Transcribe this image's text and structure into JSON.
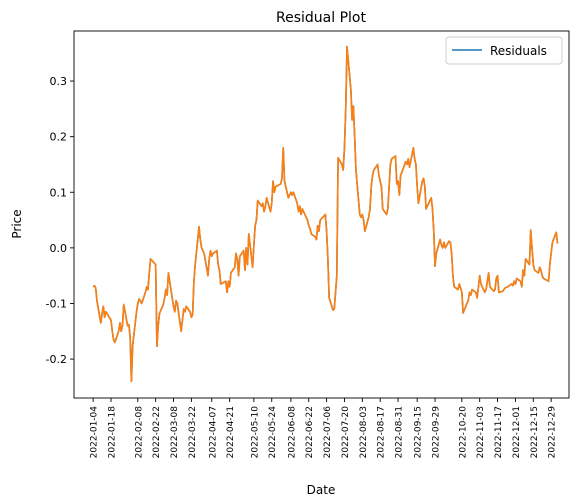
{
  "chart_data": {
    "type": "line",
    "title": "Residual Plot",
    "xlabel": "Date",
    "ylabel": "Price",
    "grid": false,
    "legend_position": "upper right",
    "xlim": [
      "2021-12-20",
      "2023-01-12"
    ],
    "ylim": [
      -0.27,
      0.39
    ],
    "yticks": [
      "-0.2",
      "-0.1",
      "0.0",
      "0.1",
      "0.2",
      "0.3"
    ],
    "xticks": [
      "2022-01-04",
      "2022-01-18",
      "2022-02-08",
      "2022-02-22",
      "2022-03-08",
      "2022-03-22",
      "2022-04-07",
      "2022-04-21",
      "2022-05-10",
      "2022-05-24",
      "2022-06-08",
      "2022-06-22",
      "2022-07-06",
      "2022-07-20",
      "2022-08-03",
      "2022-08-17",
      "2022-08-31",
      "2022-09-15",
      "2022-09-29",
      "2022-10-20",
      "2022-11-03",
      "2022-11-17",
      "2022-12-01",
      "2022-12-15",
      "2022-12-29"
    ],
    "series": [
      {
        "name": "Residuals",
        "color": "#1f77b4",
        "points": [
          [
            "2022-01-04",
            -0.07
          ],
          [
            "2022-01-05",
            -0.068
          ],
          [
            "2022-01-06",
            -0.072
          ],
          [
            "2022-01-07",
            -0.095
          ],
          [
            "2022-01-10",
            -0.135
          ],
          [
            "2022-01-11",
            -0.118
          ],
          [
            "2022-01-12",
            -0.105
          ],
          [
            "2022-01-13",
            -0.125
          ],
          [
            "2022-01-14",
            -0.115
          ],
          [
            "2022-01-18",
            -0.13
          ],
          [
            "2022-01-19",
            -0.15
          ],
          [
            "2022-01-20",
            -0.165
          ],
          [
            "2022-01-21",
            -0.17
          ],
          [
            "2022-01-24",
            -0.15
          ],
          [
            "2022-01-25",
            -0.135
          ],
          [
            "2022-01-26",
            -0.15
          ],
          [
            "2022-01-27",
            -0.14
          ],
          [
            "2022-01-28",
            -0.102
          ],
          [
            "2022-01-31",
            -0.14
          ],
          [
            "2022-02-01",
            -0.138
          ],
          [
            "2022-02-02",
            -0.16
          ],
          [
            "2022-02-03",
            -0.24
          ],
          [
            "2022-02-04",
            -0.175
          ],
          [
            "2022-02-07",
            -0.115
          ],
          [
            "2022-02-08",
            -0.1
          ],
          [
            "2022-02-09",
            -0.092
          ],
          [
            "2022-02-10",
            -0.095
          ],
          [
            "2022-02-11",
            -0.1
          ],
          [
            "2022-02-14",
            -0.08
          ],
          [
            "2022-02-15",
            -0.07
          ],
          [
            "2022-02-16",
            -0.075
          ],
          [
            "2022-02-17",
            -0.045
          ],
          [
            "2022-02-18",
            -0.02
          ],
          [
            "2022-02-22",
            -0.03
          ],
          [
            "2022-02-23",
            -0.177
          ],
          [
            "2022-02-24",
            -0.14
          ],
          [
            "2022-02-25",
            -0.118
          ],
          [
            "2022-02-28",
            -0.102
          ],
          [
            "2022-03-01",
            -0.09
          ],
          [
            "2022-03-02",
            -0.075
          ],
          [
            "2022-03-03",
            -0.085
          ],
          [
            "2022-03-04",
            -0.045
          ],
          [
            "2022-03-07",
            -0.09
          ],
          [
            "2022-03-08",
            -0.105
          ],
          [
            "2022-03-09",
            -0.115
          ],
          [
            "2022-03-10",
            -0.095
          ],
          [
            "2022-03-11",
            -0.1
          ],
          [
            "2022-03-14",
            -0.15
          ],
          [
            "2022-03-15",
            -0.13
          ],
          [
            "2022-03-16",
            -0.11
          ],
          [
            "2022-03-17",
            -0.115
          ],
          [
            "2022-03-18",
            -0.105
          ],
          [
            "2022-03-21",
            -0.115
          ],
          [
            "2022-03-22",
            -0.125
          ],
          [
            "2022-03-23",
            -0.12
          ],
          [
            "2022-03-24",
            -0.06
          ],
          [
            "2022-03-25",
            -0.03
          ],
          [
            "2022-03-28",
            0.038
          ],
          [
            "2022-03-29",
            0.015
          ],
          [
            "2022-03-30",
            0.0
          ],
          [
            "2022-03-31",
            -0.005
          ],
          [
            "2022-04-01",
            -0.01
          ],
          [
            "2022-04-04",
            -0.05
          ],
          [
            "2022-04-05",
            -0.02
          ],
          [
            "2022-04-06",
            -0.005
          ],
          [
            "2022-04-07",
            -0.015
          ],
          [
            "2022-04-08",
            -0.01
          ],
          [
            "2022-04-11",
            -0.005
          ],
          [
            "2022-04-12",
            -0.03
          ],
          [
            "2022-04-13",
            -0.04
          ],
          [
            "2022-04-14",
            -0.065
          ],
          [
            "2022-04-18",
            -0.06
          ],
          [
            "2022-04-19",
            -0.08
          ],
          [
            "2022-04-20",
            -0.06
          ],
          [
            "2022-04-21",
            -0.07
          ],
          [
            "2022-04-22",
            -0.045
          ],
          [
            "2022-04-25",
            -0.035
          ],
          [
            "2022-04-26",
            -0.01
          ],
          [
            "2022-04-27",
            -0.02
          ],
          [
            "2022-04-28",
            -0.05
          ],
          [
            "2022-04-29",
            -0.015
          ],
          [
            "2022-05-02",
            -0.005
          ],
          [
            "2022-05-03",
            -0.04
          ],
          [
            "2022-05-04",
            0.0
          ],
          [
            "2022-05-05",
            -0.03
          ],
          [
            "2022-05-06",
            0.025
          ],
          [
            "2022-05-09",
            -0.035
          ],
          [
            "2022-05-10",
            0.005
          ],
          [
            "2022-05-11",
            0.04
          ],
          [
            "2022-05-12",
            0.05
          ],
          [
            "2022-05-13",
            0.085
          ],
          [
            "2022-05-16",
            0.075
          ],
          [
            "2022-05-17",
            0.08
          ],
          [
            "2022-05-18",
            0.065
          ],
          [
            "2022-05-19",
            0.075
          ],
          [
            "2022-05-20",
            0.09
          ],
          [
            "2022-05-23",
            0.065
          ],
          [
            "2022-05-24",
            0.08
          ],
          [
            "2022-05-25",
            0.12
          ],
          [
            "2022-05-26",
            0.1
          ],
          [
            "2022-05-27",
            0.11
          ],
          [
            "2022-05-31",
            0.115
          ],
          [
            "2022-06-01",
            0.125
          ],
          [
            "2022-06-02",
            0.18
          ],
          [
            "2022-06-03",
            0.12
          ],
          [
            "2022-06-06",
            0.09
          ],
          [
            "2022-06-07",
            0.095
          ],
          [
            "2022-06-08",
            0.1
          ],
          [
            "2022-06-09",
            0.095
          ],
          [
            "2022-06-10",
            0.1
          ],
          [
            "2022-06-13",
            0.08
          ],
          [
            "2022-06-14",
            0.065
          ],
          [
            "2022-06-15",
            0.075
          ],
          [
            "2022-06-16",
            0.06
          ],
          [
            "2022-06-17",
            0.07
          ],
          [
            "2022-06-21",
            0.05
          ],
          [
            "2022-06-22",
            0.04
          ],
          [
            "2022-06-23",
            0.035
          ],
          [
            "2022-06-24",
            0.025
          ],
          [
            "2022-06-27",
            0.02
          ],
          [
            "2022-06-28",
            0.015
          ],
          [
            "2022-06-29",
            0.04
          ],
          [
            "2022-06-30",
            0.03
          ],
          [
            "2022-07-01",
            0.05
          ],
          [
            "2022-07-05",
            0.06
          ],
          [
            "2022-07-06",
            0.03
          ],
          [
            "2022-07-07",
            -0.02
          ],
          [
            "2022-07-08",
            -0.09
          ],
          [
            "2022-07-11",
            -0.112
          ],
          [
            "2022-07-12",
            -0.11
          ],
          [
            "2022-07-13",
            -0.08
          ],
          [
            "2022-07-14",
            -0.05
          ],
          [
            "2022-07-15",
            0.162
          ],
          [
            "2022-07-18",
            0.15
          ],
          [
            "2022-07-19",
            0.14
          ],
          [
            "2022-07-20",
            0.18
          ],
          [
            "2022-07-21",
            0.25
          ],
          [
            "2022-07-22",
            0.362
          ],
          [
            "2022-07-25",
            0.285
          ],
          [
            "2022-07-26",
            0.23
          ],
          [
            "2022-07-27",
            0.255
          ],
          [
            "2022-07-28",
            0.2
          ],
          [
            "2022-07-29",
            0.14
          ],
          [
            "2022-08-01",
            0.06
          ],
          [
            "2022-08-02",
            0.055
          ],
          [
            "2022-08-03",
            0.06
          ],
          [
            "2022-08-04",
            0.05
          ],
          [
            "2022-08-05",
            0.03
          ],
          [
            "2022-08-08",
            0.055
          ],
          [
            "2022-08-09",
            0.07
          ],
          [
            "2022-08-10",
            0.11
          ],
          [
            "2022-08-11",
            0.13
          ],
          [
            "2022-08-12",
            0.14
          ],
          [
            "2022-08-15",
            0.15
          ],
          [
            "2022-08-16",
            0.13
          ],
          [
            "2022-08-17",
            0.12
          ],
          [
            "2022-08-18",
            0.11
          ],
          [
            "2022-08-19",
            0.07
          ],
          [
            "2022-08-22",
            0.06
          ],
          [
            "2022-08-23",
            0.07
          ],
          [
            "2022-08-24",
            0.11
          ],
          [
            "2022-08-25",
            0.15
          ],
          [
            "2022-08-26",
            0.16
          ],
          [
            "2022-08-29",
            0.165
          ],
          [
            "2022-08-30",
            0.115
          ],
          [
            "2022-08-31",
            0.12
          ],
          [
            "2022-09-01",
            0.095
          ],
          [
            "2022-09-02",
            0.13
          ],
          [
            "2022-09-06",
            0.155
          ],
          [
            "2022-09-07",
            0.15
          ],
          [
            "2022-09-08",
            0.16
          ],
          [
            "2022-09-09",
            0.145
          ],
          [
            "2022-09-12",
            0.18
          ],
          [
            "2022-09-13",
            0.16
          ],
          [
            "2022-09-14",
            0.15
          ],
          [
            "2022-09-15",
            0.11
          ],
          [
            "2022-09-16",
            0.08
          ],
          [
            "2022-09-19",
            0.12
          ],
          [
            "2022-09-20",
            0.125
          ],
          [
            "2022-09-21",
            0.11
          ],
          [
            "2022-09-22",
            0.07
          ],
          [
            "2022-09-23",
            0.075
          ],
          [
            "2022-09-26",
            0.09
          ],
          [
            "2022-09-27",
            0.07
          ],
          [
            "2022-09-28",
            0.03
          ],
          [
            "2022-09-29",
            -0.033
          ],
          [
            "2022-09-30",
            -0.01
          ],
          [
            "2022-10-03",
            0.015
          ],
          [
            "2022-10-04",
            0.005
          ],
          [
            "2022-10-05",
            0.0
          ],
          [
            "2022-10-06",
            0.01
          ],
          [
            "2022-10-07",
            0.0
          ],
          [
            "2022-10-10",
            0.012
          ],
          [
            "2022-10-11",
            0.01
          ],
          [
            "2022-10-12",
            -0.01
          ],
          [
            "2022-10-13",
            -0.05
          ],
          [
            "2022-10-14",
            -0.07
          ],
          [
            "2022-10-17",
            -0.075
          ],
          [
            "2022-10-18",
            -0.065
          ],
          [
            "2022-10-19",
            -0.072
          ],
          [
            "2022-10-20",
            -0.08
          ],
          [
            "2022-10-21",
            -0.117
          ],
          [
            "2022-10-24",
            -0.1
          ],
          [
            "2022-10-25",
            -0.095
          ],
          [
            "2022-10-26",
            -0.08
          ],
          [
            "2022-10-27",
            -0.085
          ],
          [
            "2022-10-28",
            -0.075
          ],
          [
            "2022-10-31",
            -0.08
          ],
          [
            "2022-11-01",
            -0.09
          ],
          [
            "2022-11-02",
            -0.07
          ],
          [
            "2022-11-03",
            -0.05
          ],
          [
            "2022-11-04",
            -0.065
          ],
          [
            "2022-11-07",
            -0.08
          ],
          [
            "2022-11-08",
            -0.075
          ],
          [
            "2022-11-09",
            -0.06
          ],
          [
            "2022-11-10",
            -0.045
          ],
          [
            "2022-11-11",
            -0.07
          ],
          [
            "2022-11-14",
            -0.078
          ],
          [
            "2022-11-15",
            -0.075
          ],
          [
            "2022-11-16",
            -0.055
          ],
          [
            "2022-11-17",
            -0.05
          ],
          [
            "2022-11-18",
            -0.08
          ],
          [
            "2022-11-21",
            -0.078
          ],
          [
            "2022-11-22",
            -0.075
          ],
          [
            "2022-11-23",
            -0.072
          ],
          [
            "2022-11-25",
            -0.07
          ],
          [
            "2022-11-28",
            -0.065
          ],
          [
            "2022-11-29",
            -0.068
          ],
          [
            "2022-11-30",
            -0.06
          ],
          [
            "2022-12-01",
            -0.065
          ],
          [
            "2022-12-02",
            -0.055
          ],
          [
            "2022-12-05",
            -0.06
          ],
          [
            "2022-12-06",
            -0.07
          ],
          [
            "2022-12-07",
            -0.04
          ],
          [
            "2022-12-08",
            -0.05
          ],
          [
            "2022-12-09",
            -0.02
          ],
          [
            "2022-12-12",
            -0.03
          ],
          [
            "2022-12-13",
            0.032
          ],
          [
            "2022-12-14",
            0.0
          ],
          [
            "2022-12-15",
            -0.03
          ],
          [
            "2022-12-16",
            -0.04
          ],
          [
            "2022-12-19",
            -0.045
          ],
          [
            "2022-12-20",
            -0.035
          ],
          [
            "2022-12-21",
            -0.04
          ],
          [
            "2022-12-22",
            -0.05
          ],
          [
            "2022-12-23",
            -0.055
          ],
          [
            "2022-12-27",
            -0.06
          ],
          [
            "2022-12-28",
            -0.03
          ],
          [
            "2022-12-29",
            -0.01
          ],
          [
            "2022-12-30",
            0.01
          ],
          [
            "2023-01-02",
            0.028
          ],
          [
            "2023-01-03",
            0.008
          ]
        ]
      }
    ],
    "overlay_color": "#ff7f0e"
  }
}
